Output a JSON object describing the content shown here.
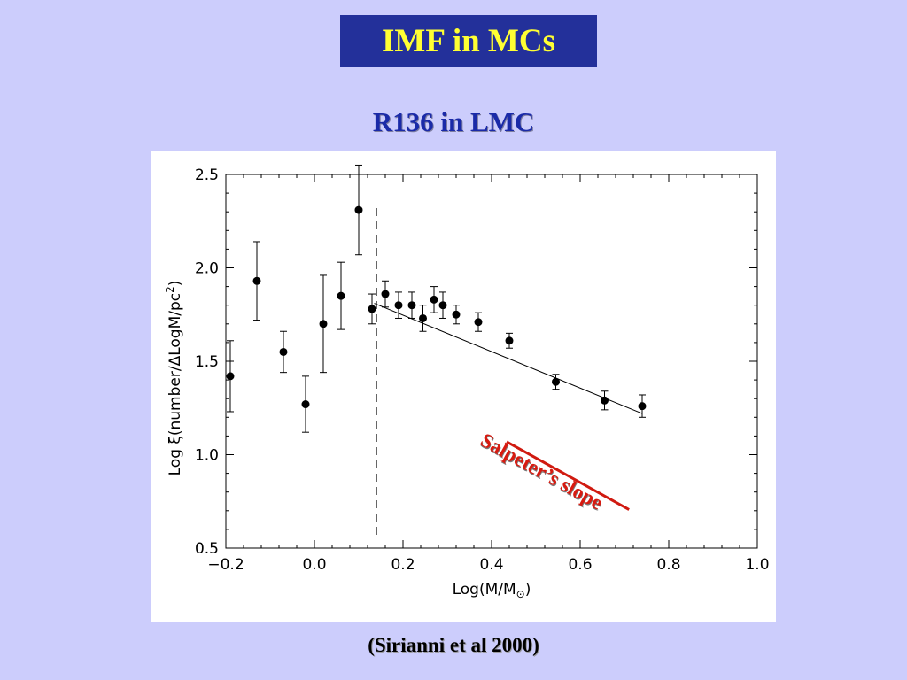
{
  "slide": {
    "title": "IMF in MCs",
    "subtitle": "R136 in LMC",
    "citation": "(Sirianni et al 2000)",
    "annotation": "Salpeter’s slope"
  },
  "colors": {
    "background": "#cccdfc",
    "title_box": "#23309a",
    "title_text": "#ffff33",
    "subtitle_text": "#1a2aa8",
    "annotation": "#d81a10"
  },
  "chart_data": {
    "type": "scatter",
    "title": "",
    "xlabel": "Log(M/M",
    "xlabel_subscript": "⊙",
    "xlabel_suffix": ")",
    "ylabel": "Log ξ(number/ΔLogM/pc",
    "ylabel_superscript": "2",
    "ylabel_suffix": ")",
    "xlim": [
      -0.2,
      1.0
    ],
    "ylim": [
      0.5,
      2.5
    ],
    "xticks": [
      -0.2,
      0.0,
      0.2,
      0.4,
      0.6,
      0.8,
      1.0
    ],
    "xtick_labels": [
      "−0.2",
      "0.0",
      "0.2",
      "0.4",
      "0.6",
      "0.8",
      "1.0"
    ],
    "yticks": [
      0.5,
      1.0,
      1.5,
      2.0,
      2.5
    ],
    "ytick_labels": [
      "0.5",
      "1.0",
      "1.5",
      "2.0",
      "2.5"
    ],
    "grid": false,
    "points": [
      {
        "x": -0.19,
        "y": 1.42,
        "err": 0.19
      },
      {
        "x": -0.13,
        "y": 1.93,
        "err": 0.21
      },
      {
        "x": -0.07,
        "y": 1.55,
        "err": 0.11
      },
      {
        "x": -0.02,
        "y": 1.27,
        "err": 0.15
      },
      {
        "x": 0.02,
        "y": 1.7,
        "err": 0.26
      },
      {
        "x": 0.06,
        "y": 1.85,
        "err": 0.18
      },
      {
        "x": 0.1,
        "y": 2.31,
        "err": 0.24
      },
      {
        "x": 0.13,
        "y": 1.78,
        "err": 0.08
      },
      {
        "x": 0.16,
        "y": 1.86,
        "err": 0.07
      },
      {
        "x": 0.19,
        "y": 1.8,
        "err": 0.07
      },
      {
        "x": 0.22,
        "y": 1.8,
        "err": 0.07
      },
      {
        "x": 0.245,
        "y": 1.73,
        "err": 0.07
      },
      {
        "x": 0.27,
        "y": 1.83,
        "err": 0.07
      },
      {
        "x": 0.29,
        "y": 1.8,
        "err": 0.07
      },
      {
        "x": 0.32,
        "y": 1.75,
        "err": 0.05
      },
      {
        "x": 0.37,
        "y": 1.71,
        "err": 0.05
      },
      {
        "x": 0.44,
        "y": 1.61,
        "err": 0.04
      },
      {
        "x": 0.545,
        "y": 1.39,
        "err": 0.04
      },
      {
        "x": 0.655,
        "y": 1.29,
        "err": 0.05
      },
      {
        "x": 0.74,
        "y": 1.26,
        "err": 0.06
      }
    ],
    "fit_line": {
      "x": [
        0.135,
        0.74
      ],
      "y": [
        1.81,
        1.22
      ]
    },
    "vline_x": 0.14
  }
}
